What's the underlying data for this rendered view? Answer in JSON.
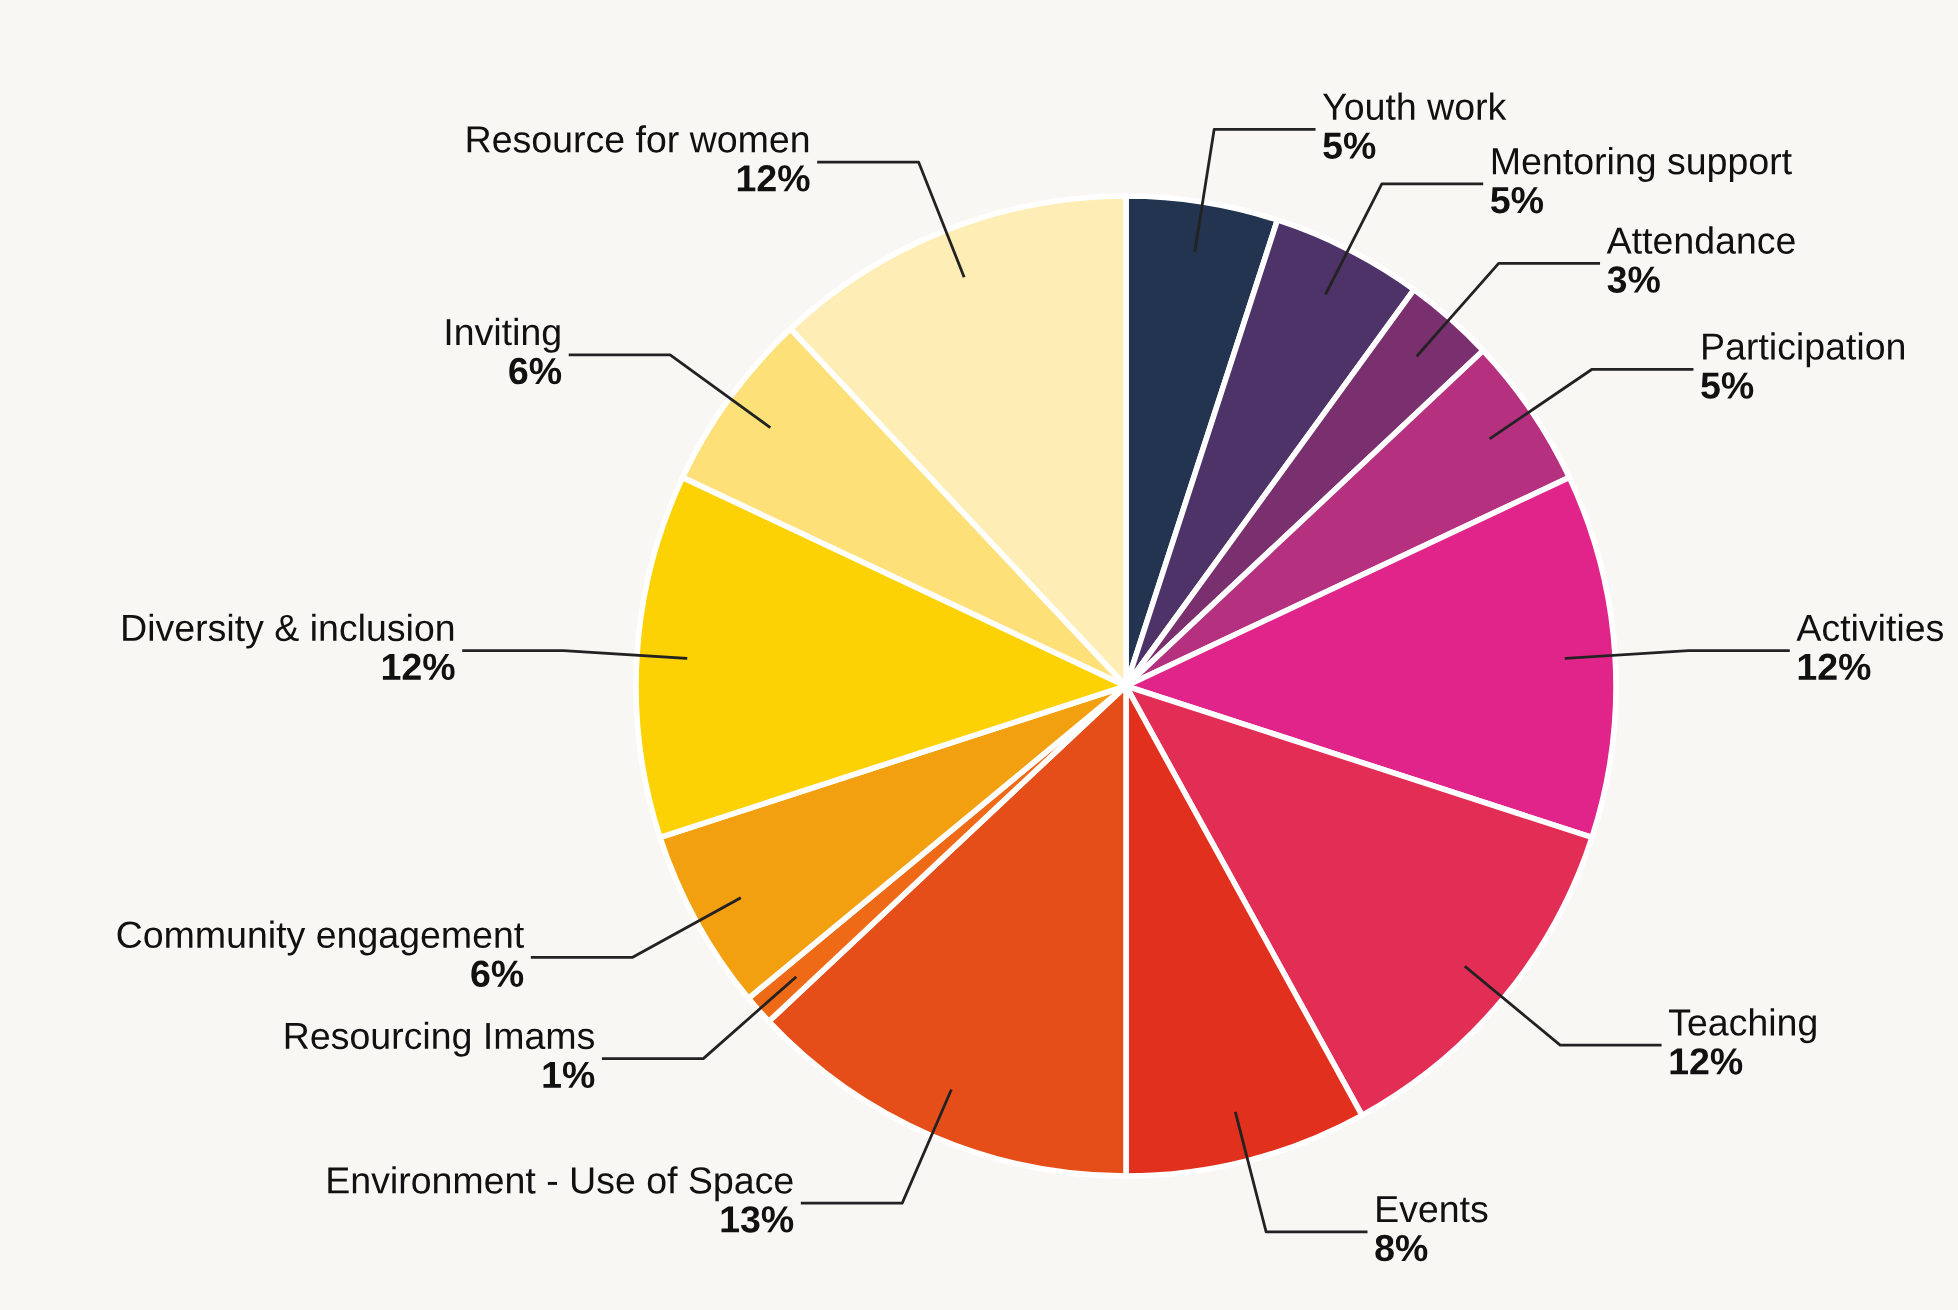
{
  "chart_data": {
    "type": "pie",
    "categories": [
      "Youth work",
      "Mentoring support",
      "Attendance",
      "Participation",
      "Activities",
      "Teaching",
      "Events",
      "Environment - Use of Space",
      "Resourcing Imams",
      "Community engagement",
      "Diversity & inclusion",
      "Inviting",
      "Resource for women"
    ],
    "values": [
      5,
      5,
      3,
      5,
      12,
      12,
      8,
      13,
      1,
      6,
      12,
      6,
      12
    ],
    "value_labels": [
      "5%",
      "5%",
      "3%",
      "5%",
      "12%",
      "12%",
      "8%",
      "13%",
      "1%",
      "6%",
      "12%",
      "6%",
      "12%"
    ],
    "colors": [
      "#22344f",
      "#4e3369",
      "#7a2f6e",
      "#b5307f",
      "#e0248a",
      "#e22d55",
      "#e2301f",
      "#e54e19",
      "#ee6a16",
      "#f2a010",
      "#fdd204",
      "#fde077",
      "#feedb5"
    ]
  }
}
